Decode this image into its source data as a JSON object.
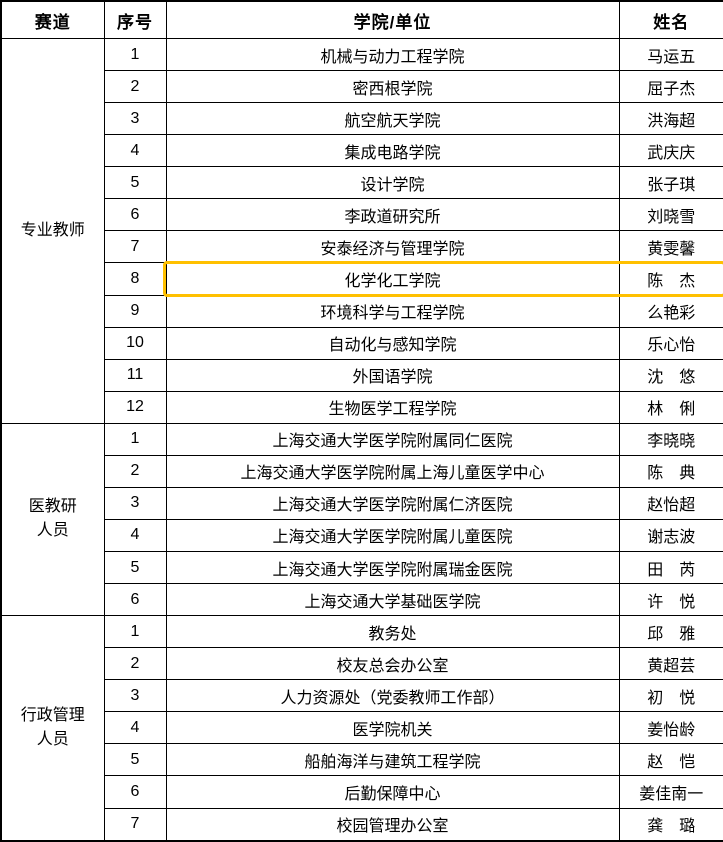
{
  "table": {
    "headers": [
      "赛道",
      "序号",
      "学院/单位",
      "姓名"
    ],
    "groups": [
      {
        "track": "专业教师",
        "track_lines": [
          "专业教师"
        ],
        "rows": [
          {
            "no": "1",
            "unit": "机械与动力工程学院",
            "name": "马运五"
          },
          {
            "no": "2",
            "unit": "密西根学院",
            "name": "屈子杰"
          },
          {
            "no": "3",
            "unit": "航空航天学院",
            "name": "洪海超"
          },
          {
            "no": "4",
            "unit": "集成电路学院",
            "name": "武庆庆"
          },
          {
            "no": "5",
            "unit": "设计学院",
            "name": "张子琪"
          },
          {
            "no": "6",
            "unit": "李政道研究所",
            "name": "刘晓雪"
          },
          {
            "no": "7",
            "unit": "安泰经济与管理学院",
            "name": "黄雯馨"
          },
          {
            "no": "8",
            "unit": "化学化工学院",
            "name": "陈　杰"
          },
          {
            "no": "9",
            "unit": "环境科学与工程学院",
            "name": "么艳彩"
          },
          {
            "no": "10",
            "unit": "自动化与感知学院",
            "name": "乐心怡"
          },
          {
            "no": "11",
            "unit": "外国语学院",
            "name": "沈　悠"
          },
          {
            "no": "12",
            "unit": "生物医学工程学院",
            "name": "林　俐"
          }
        ]
      },
      {
        "track": "医教研人员",
        "track_lines": [
          "医教研",
          "人员"
        ],
        "rows": [
          {
            "no": "1",
            "unit": "上海交通大学医学院附属同仁医院",
            "name": "李晓晓"
          },
          {
            "no": "2",
            "unit": "上海交通大学医学院附属上海儿童医学中心",
            "name": "陈　典"
          },
          {
            "no": "3",
            "unit": "上海交通大学医学院附属仁济医院",
            "name": "赵怡超"
          },
          {
            "no": "4",
            "unit": "上海交通大学医学院附属儿童医院",
            "name": "谢志波"
          },
          {
            "no": "5",
            "unit": "上海交通大学医学院附属瑞金医院",
            "name": "田　芮"
          },
          {
            "no": "6",
            "unit": "上海交通大学基础医学院",
            "name": "许　悦"
          }
        ]
      },
      {
        "track": "行政管理人员",
        "track_lines": [
          "行政管理",
          "人员"
        ],
        "rows": [
          {
            "no": "1",
            "unit": "教务处",
            "name": "邱　雅"
          },
          {
            "no": "2",
            "unit": "校友总会办公室",
            "name": "黄超芸"
          },
          {
            "no": "3",
            "unit": "人力资源处（党委教师工作部）",
            "name": "初　悦"
          },
          {
            "no": "4",
            "unit": "医学院机关",
            "name": "姜怡龄"
          },
          {
            "no": "5",
            "unit": "船舶海洋与建筑工程学院",
            "name": "赵　恺"
          },
          {
            "no": "6",
            "unit": "后勤保障中心",
            "name": "姜佳南一"
          },
          {
            "no": "7",
            "unit": "校园管理办公室",
            "name": "龚　璐"
          }
        ]
      }
    ],
    "highlight": {
      "group": 0,
      "row": 7,
      "color": "#FFC000"
    }
  }
}
